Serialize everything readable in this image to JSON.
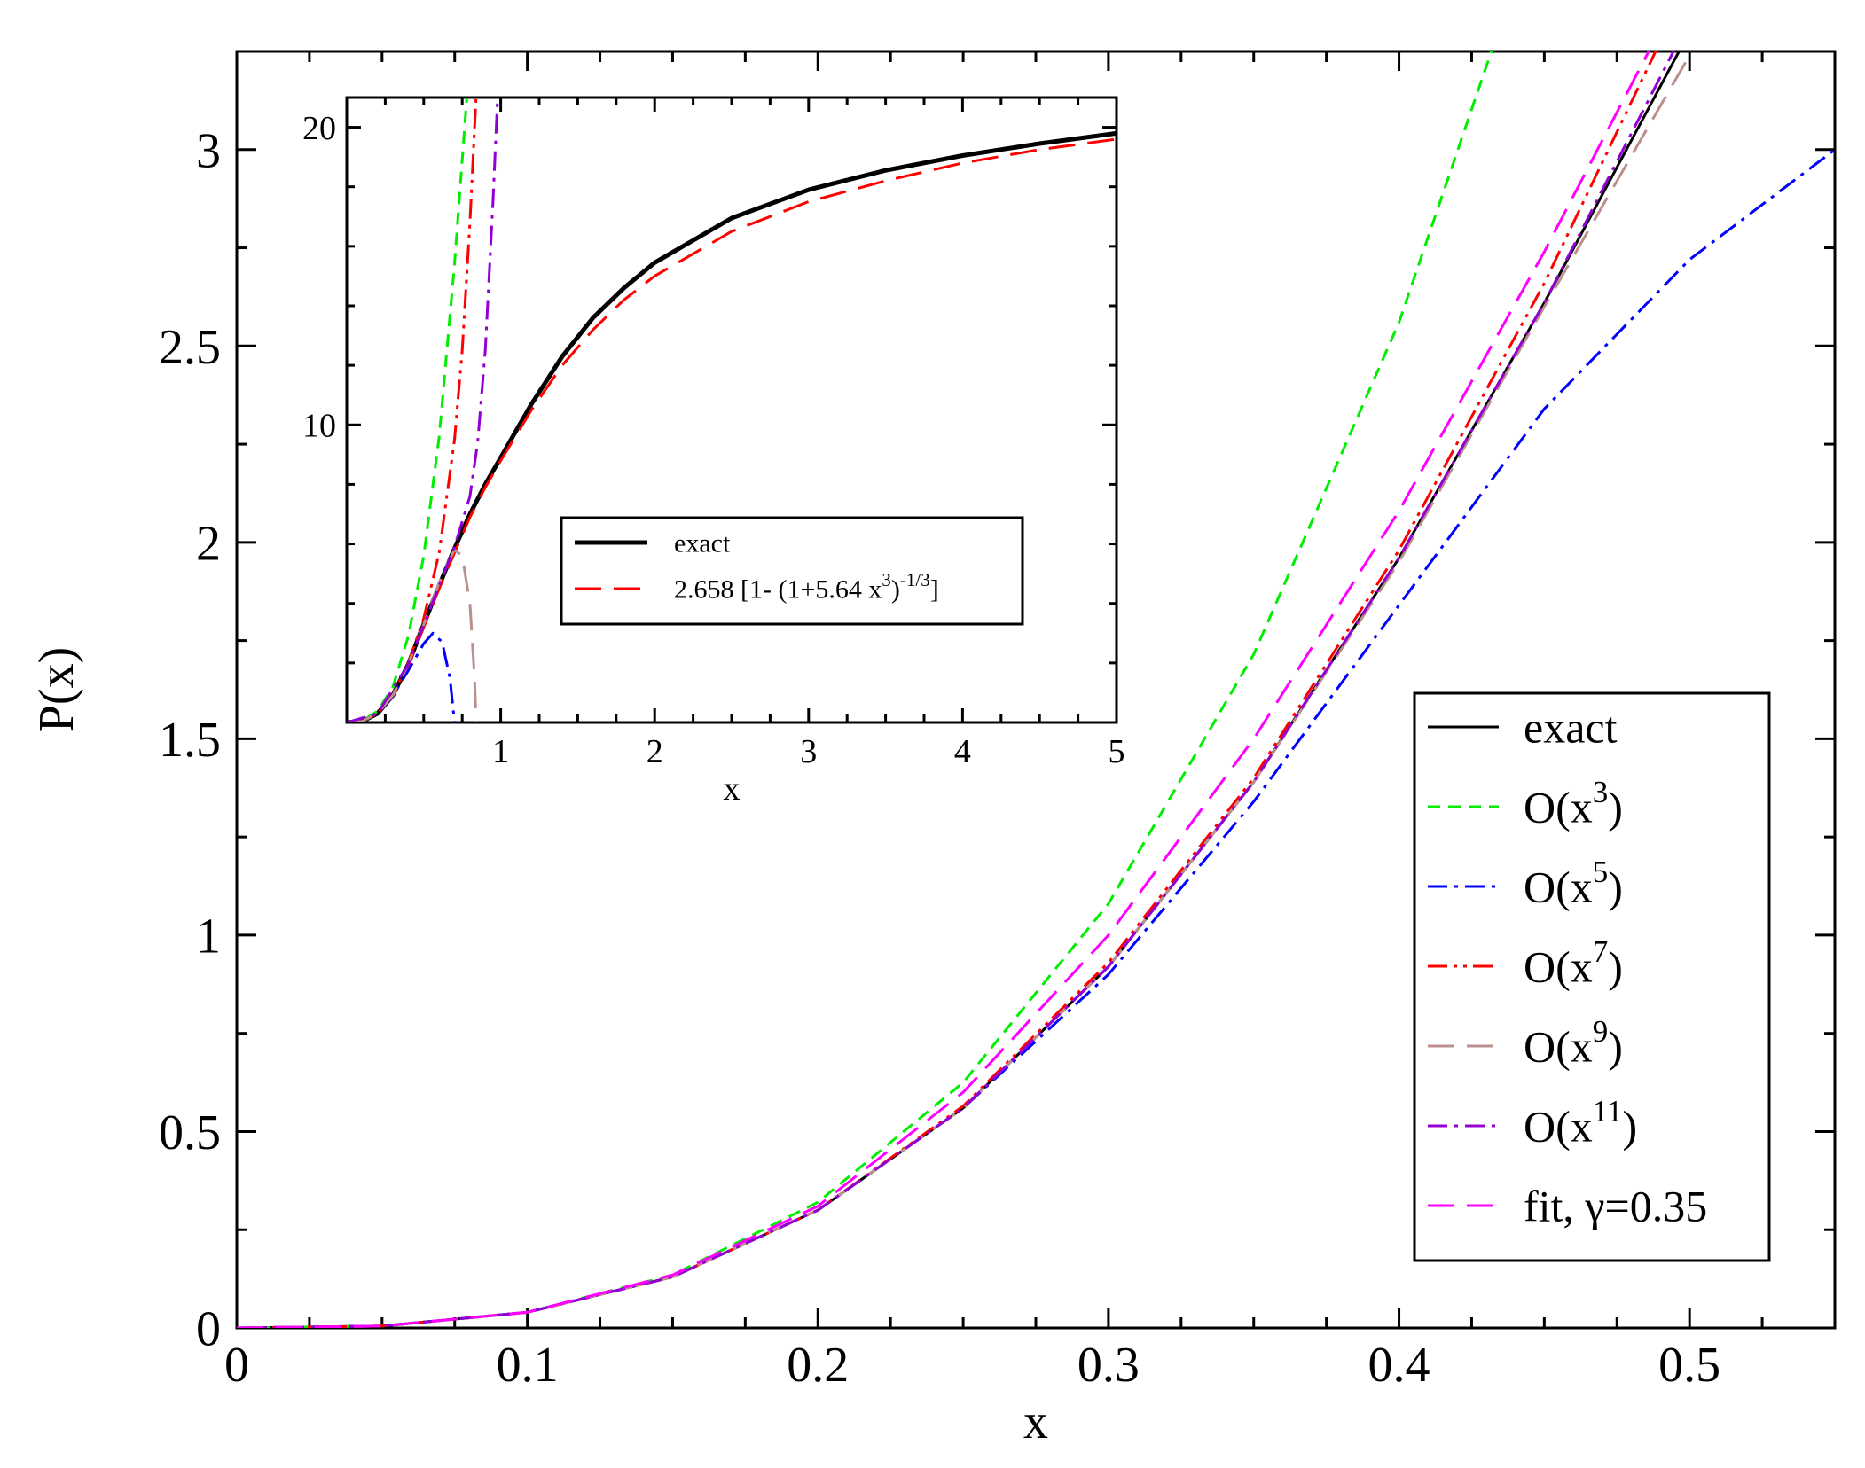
{
  "chart_data": [
    {
      "type": "line",
      "title": "",
      "xlabel": "x",
      "ylabel": "P(x)",
      "xlim": [
        0,
        0.55
      ],
      "ylim": [
        0,
        3.25
      ],
      "xticks": [
        0,
        0.1,
        0.2,
        0.3,
        0.4,
        0.5
      ],
      "xtick_labels": [
        "0",
        "0.1",
        "0.2",
        "0.3",
        "0.4",
        "0.5"
      ],
      "yticks": [
        0,
        0.5,
        1,
        1.5,
        2,
        2.5,
        3
      ],
      "ytick_labels": [
        "0",
        "0.5",
        "1",
        "1.5",
        "2",
        "2.5",
        "3"
      ],
      "legend_position": "bottom-right",
      "series": [
        {
          "name": "exact",
          "color": "#000000",
          "dash": "solid",
          "x": [
            0,
            0.05,
            0.1,
            0.15,
            0.2,
            0.25,
            0.3,
            0.35,
            0.4,
            0.45,
            0.5
          ],
          "y": [
            0,
            0.005,
            0.04,
            0.13,
            0.3,
            0.56,
            0.92,
            1.39,
            1.96,
            2.61,
            3.3
          ]
        },
        {
          "name": "O(x^3)",
          "legend_base": "O(x",
          "legend_sup": "3",
          "legend_close": ")",
          "color": "#00ee00",
          "dash": "short",
          "x": [
            0,
            0.05,
            0.1,
            0.15,
            0.2,
            0.25,
            0.3,
            0.35,
            0.4,
            0.45
          ],
          "y": [
            0,
            0.005,
            0.04,
            0.135,
            0.32,
            0.625,
            1.08,
            1.715,
            2.56,
            3.645
          ]
        },
        {
          "name": "O(x^5)",
          "legend_base": "O(x",
          "legend_sup": "5",
          "legend_close": ")",
          "color": "#0000ff",
          "dash": "dashdot",
          "x": [
            0,
            0.05,
            0.1,
            0.15,
            0.2,
            0.25,
            0.3,
            0.35,
            0.4,
            0.45,
            0.5,
            0.55
          ],
          "y": [
            0,
            0.005,
            0.04,
            0.13,
            0.3,
            0.56,
            0.9,
            1.34,
            1.84,
            2.34,
            2.72,
            3.0
          ]
        },
        {
          "name": "O(x^7)",
          "legend_base": "O(x",
          "legend_sup": "7",
          "legend_close": ")",
          "color": "#ff0000",
          "dash": "dashdotdot",
          "x": [
            0,
            0.05,
            0.1,
            0.15,
            0.2,
            0.25,
            0.3,
            0.35,
            0.4,
            0.45,
            0.5
          ],
          "y": [
            0,
            0.005,
            0.04,
            0.13,
            0.3,
            0.565,
            0.93,
            1.4,
            1.98,
            2.66,
            3.43
          ]
        },
        {
          "name": "O(x^9)",
          "legend_base": "O(x",
          "legend_sup": "9",
          "legend_close": ")",
          "color": "#bc8f8f",
          "dash": "long",
          "x": [
            0,
            0.05,
            0.1,
            0.15,
            0.2,
            0.25,
            0.3,
            0.35,
            0.4,
            0.45,
            0.5
          ],
          "y": [
            0,
            0.005,
            0.04,
            0.13,
            0.3,
            0.56,
            0.92,
            1.39,
            1.95,
            2.6,
            3.24
          ]
        },
        {
          "name": "O(x^11)",
          "legend_base": "O(x",
          "legend_sup": "11",
          "legend_close": ")",
          "color": "#9400d3",
          "dash": "dashdot",
          "x": [
            0,
            0.05,
            0.1,
            0.15,
            0.2,
            0.25,
            0.3,
            0.35,
            0.4,
            0.45,
            0.5
          ],
          "y": [
            0,
            0.005,
            0.04,
            0.13,
            0.3,
            0.56,
            0.92,
            1.39,
            1.96,
            2.61,
            3.33
          ]
        },
        {
          "name": "fit, γ=0.35",
          "legend_base": "fit, γ=0.35",
          "legend_sup": "",
          "legend_close": "",
          "color": "#ff00ff",
          "dash": "long",
          "x": [
            0,
            0.05,
            0.1,
            0.15,
            0.2,
            0.25,
            0.3,
            0.35,
            0.4,
            0.45,
            0.5
          ],
          "y": [
            0,
            0.005,
            0.04,
            0.135,
            0.31,
            0.6,
            1.0,
            1.5,
            2.08,
            2.74,
            3.45
          ]
        }
      ]
    },
    {
      "type": "line",
      "title": "",
      "xlabel": "x",
      "ylabel": "",
      "xlim": [
        0,
        5
      ],
      "ylim": [
        0,
        21
      ],
      "xticks": [
        1,
        2,
        3,
        4,
        5
      ],
      "xtick_labels": [
        "1",
        "2",
        "3",
        "4",
        "5"
      ],
      "yticks": [
        10,
        20
      ],
      "ytick_labels": [
        "10",
        "20"
      ],
      "legend_position": "center",
      "series": [
        {
          "name": "exact",
          "color": "#000000",
          "dash": "solid",
          "width": 5,
          "x": [
            0,
            0.1,
            0.2,
            0.3,
            0.4,
            0.5,
            0.6,
            0.7,
            0.8,
            0.9,
            1.0,
            1.2,
            1.4,
            1.6,
            1.8,
            2.0,
            2.5,
            3.0,
            3.5,
            4.0,
            4.5,
            5.0
          ],
          "y": [
            0,
            0.04,
            0.3,
            0.92,
            1.96,
            3.3,
            4.6,
            5.85,
            7.0,
            8.0,
            8.9,
            10.7,
            12.3,
            13.6,
            14.6,
            15.45,
            16.95,
            17.9,
            18.55,
            19.05,
            19.45,
            19.8
          ]
        },
        {
          "name": "2.658 [1- (1+5.64 x^3)^-1/3]",
          "legend_base": "2.658 [1- (1+5.64 x",
          "legend_sup": "3",
          "legend_mid": ")",
          "legend_sup2": "-1/3",
          "legend_close": "]",
          "color": "#ff0000",
          "dash": "long",
          "width": 3,
          "x": [
            0,
            0.1,
            0.2,
            0.3,
            0.4,
            0.5,
            0.6,
            0.7,
            0.8,
            0.9,
            1.0,
            1.2,
            1.4,
            1.6,
            1.8,
            2.0,
            2.5,
            3.0,
            3.5,
            4.0,
            4.5,
            5.0
          ],
          "y": [
            0,
            0.04,
            0.3,
            0.9,
            1.9,
            3.2,
            4.5,
            5.7,
            6.9,
            7.9,
            8.8,
            10.5,
            12.0,
            13.2,
            14.2,
            15.0,
            16.5,
            17.5,
            18.2,
            18.8,
            19.25,
            19.6
          ]
        },
        {
          "name": "O(x^3)",
          "color": "#00ee00",
          "dash": "short",
          "width": 3,
          "x": [
            0,
            0.1,
            0.2,
            0.3,
            0.4,
            0.5,
            0.6,
            0.7,
            0.78
          ],
          "y": [
            0,
            0.05,
            0.38,
            1.2,
            2.9,
            5.6,
            9.6,
            15.4,
            21
          ]
        },
        {
          "name": "O(x^5)",
          "color": "#0000ff",
          "dash": "dashdot",
          "width": 3,
          "x": [
            0,
            0.1,
            0.2,
            0.3,
            0.4,
            0.5,
            0.56,
            0.62,
            0.67,
            0.7
          ],
          "y": [
            0,
            0.04,
            0.3,
            0.9,
            1.75,
            2.65,
            3.0,
            2.7,
            1.5,
            0
          ]
        },
        {
          "name": "O(x^7)",
          "color": "#ff0000",
          "dash": "dashdotdot",
          "width": 3,
          "x": [
            0,
            0.1,
            0.2,
            0.3,
            0.4,
            0.5,
            0.6,
            0.7,
            0.75,
            0.8,
            0.84
          ],
          "y": [
            0,
            0.04,
            0.3,
            0.93,
            2.0,
            3.5,
            5.7,
            9.5,
            12.5,
            16.8,
            21
          ]
        },
        {
          "name": "O(x^9)",
          "color": "#bc8f8f",
          "dash": "long",
          "width": 3,
          "x": [
            0,
            0.1,
            0.2,
            0.3,
            0.4,
            0.5,
            0.6,
            0.65,
            0.7,
            0.75,
            0.8,
            0.83,
            0.84
          ],
          "y": [
            0,
            0.04,
            0.3,
            0.92,
            1.96,
            3.3,
            4.7,
            5.3,
            5.8,
            5.6,
            4.0,
            1.5,
            0
          ]
        },
        {
          "name": "O(x^11)",
          "color": "#9400d3",
          "dash": "dashdot",
          "width": 3,
          "x": [
            0,
            0.2,
            0.4,
            0.6,
            0.7,
            0.8,
            0.85,
            0.9,
            0.95,
            0.98
          ],
          "y": [
            0,
            0.3,
            1.96,
            4.6,
            5.9,
            7.6,
            9.4,
            12.5,
            17.5,
            21
          ]
        }
      ]
    }
  ]
}
